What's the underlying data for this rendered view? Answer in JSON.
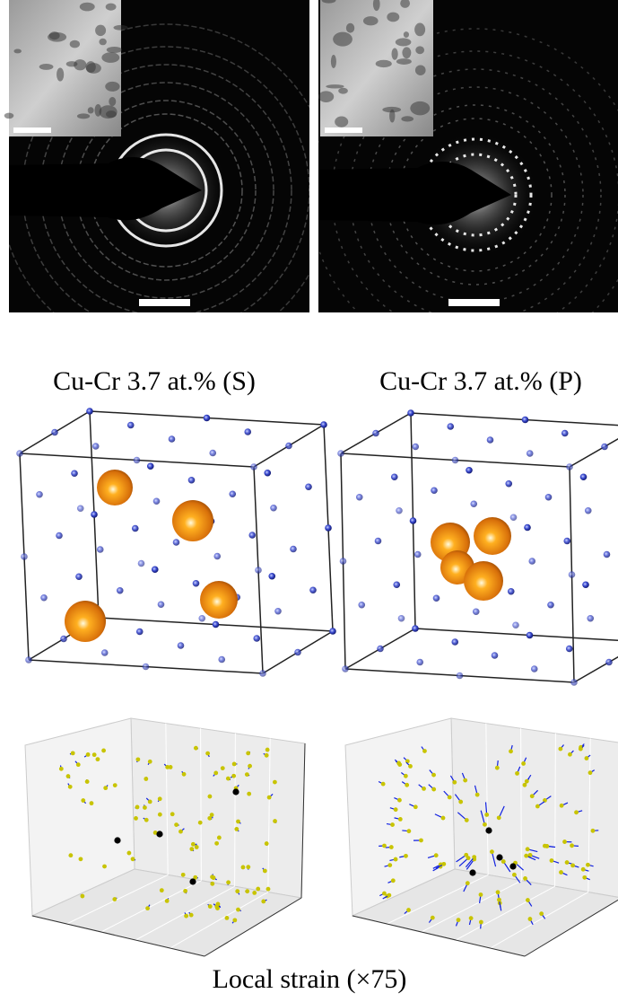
{
  "panels": [
    {
      "label": "Cu-Cr 3.7 at.% (S)"
    },
    {
      "label": "Cu-Cr 3.7 at.% (P)"
    }
  ],
  "caption": "Local strain (×75)"
}
